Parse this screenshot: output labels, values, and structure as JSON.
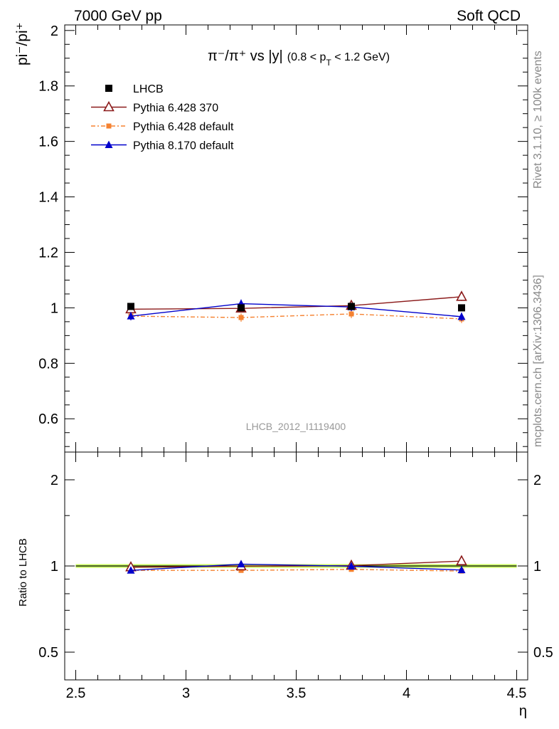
{
  "header": {
    "energy_label": "7000 GeV pp",
    "process_label": "Soft QCD"
  },
  "side_labels": {
    "rivet": "Rivet 3.1.10, ≥ 100k events",
    "mcplots": "mcplots.cern.ch [arXiv:1306.3436]"
  },
  "main_plot": {
    "title_main": "π⁻/π⁺ vs |y|",
    "title_cut": "(0.8 < p",
    "title_cut_sub": "T",
    "title_cut_end": " < 1.2 GeV)",
    "ylabel": "pi⁻/pi⁺",
    "watermark": "LHCB_2012_I1119400"
  },
  "ratio_plot": {
    "ylabel": "Ratio to LHCB"
  },
  "xlabel": "η",
  "colors": {
    "data": "#000000",
    "pythia6_370": "#8b1a1a",
    "pythia6_default": "#f58231",
    "pythia8_default": "#0000cc",
    "band": "#ccff66"
  },
  "chart_data": [
    {
      "type": "line",
      "panel": "main",
      "xlim": [
        2.45,
        4.55
      ],
      "ylim": [
        0.48,
        2.02
      ],
      "x_ticks": [
        "2.5",
        "3",
        "3.5",
        "4",
        "4.5"
      ],
      "y_ticks": [
        "0.6",
        "0.8",
        "1",
        "1.2",
        "1.4",
        "1.6",
        "1.8",
        "2"
      ],
      "legend_position": "top-left",
      "x": [
        2.75,
        3.25,
        3.75,
        4.25
      ],
      "series": [
        {
          "name": "LHCB",
          "marker": "filled-square",
          "values": [
            1.005,
            1.0,
            1.005,
            1.0
          ],
          "errors": [
            0.012,
            0.012,
            0.012,
            0.012
          ]
        },
        {
          "name": "Pythia 6.428 370",
          "marker": "open-triangle",
          "values": [
            0.995,
            0.998,
            1.008,
            1.04
          ],
          "errors": [
            0.015,
            0.015,
            0.015,
            0.015
          ]
        },
        {
          "name": "Pythia 6.428 default",
          "marker": "filled-square-small",
          "values": [
            0.97,
            0.965,
            0.978,
            0.96
          ],
          "errors": [
            0.015,
            0.015,
            0.015,
            0.015
          ]
        },
        {
          "name": "Pythia 8.170 default",
          "marker": "filled-triangle",
          "values": [
            0.97,
            1.015,
            1.003,
            0.968
          ],
          "errors": [
            0.015,
            0.015,
            0.015,
            0.015
          ]
        }
      ]
    },
    {
      "type": "line",
      "panel": "ratio",
      "ylabel": "Ratio to LHCB",
      "xlabel": "η",
      "xlim": [
        2.45,
        4.55
      ],
      "ylim": [
        0.4,
        2.5
      ],
      "log_y": true,
      "x_ticks": [
        "2.5",
        "3",
        "3.5",
        "4",
        "4.5"
      ],
      "y_ticks": [
        "0.5",
        "1",
        "2"
      ],
      "x": [
        2.75,
        3.25,
        3.75,
        4.25
      ],
      "reference_band": [
        0.985,
        1.015
      ],
      "series": [
        {
          "name": "Pythia 6.428 370",
          "values": [
            0.99,
            0.998,
            1.003,
            1.04
          ]
        },
        {
          "name": "Pythia 6.428 default",
          "values": [
            0.965,
            0.965,
            0.973,
            0.96
          ]
        },
        {
          "name": "Pythia 8.170 default",
          "values": [
            0.965,
            1.015,
            0.998,
            0.968
          ]
        }
      ]
    }
  ]
}
